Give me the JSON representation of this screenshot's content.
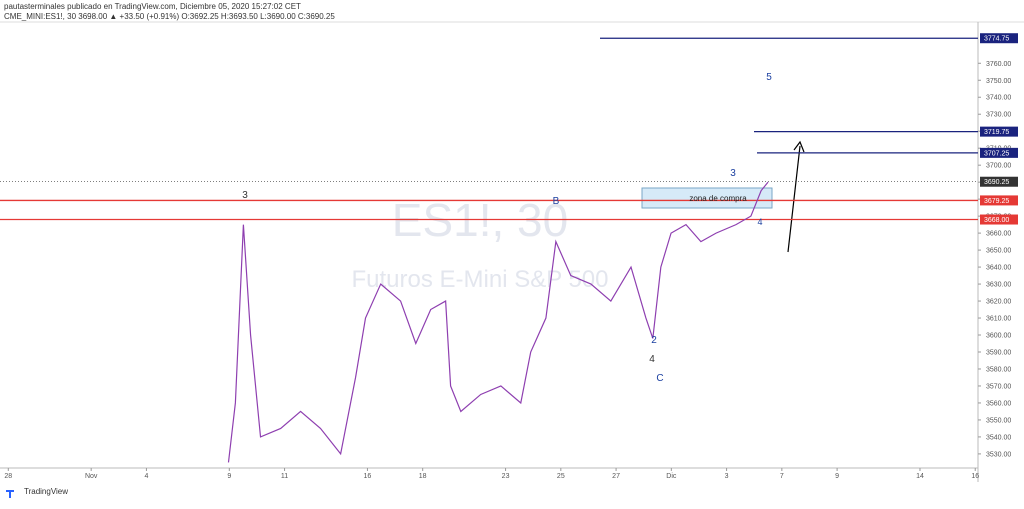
{
  "header": {
    "line1": "pautasterminales publicado en TradingView.com, Diciembre 05, 2020 15:27:02 CET",
    "line2": "CME_MINI:ES1!, 30 3698.00 ▲ +33.50 (+0.91%) O:3692.25 H:3693.50 L:3690.00 C:3690.25"
  },
  "footer": "TradingView",
  "chart_data": {
    "type": "line",
    "watermark": "ES1!, 30",
    "watermark_sub": "Futuros E-Mini S&P 500",
    "x": [
      7.97,
      8.22,
      8.51,
      8.77,
      9.13,
      9.86,
      10.58,
      11.3,
      12.03,
      12.57,
      12.93,
      13.48,
      14.2,
      14.75,
      15.29,
      15.83,
      16.01,
      16.38,
      17.1,
      17.83,
      18.55,
      18.91,
      19.46,
      19.82,
      20.36,
      21.09,
      21.81,
      22.54,
      23.08,
      23.33,
      23.62,
      23.99,
      24.53,
      25.07,
      25.62,
      26.34,
      26.88,
      27.25,
      27.5
    ],
    "series": [
      {
        "color": "#8e3fb0",
        "values": [
          3525,
          3560,
          3665,
          3600,
          3540,
          3545,
          3555,
          3545,
          3530,
          3575,
          3610,
          3630,
          3620,
          3595,
          3615,
          3620,
          3570,
          3555,
          3565,
          3570,
          3560,
          3590,
          3610,
          3655,
          3635,
          3630,
          3620,
          3640,
          3610,
          3598,
          3640,
          3660,
          3665,
          3655,
          3660,
          3665,
          3670,
          3685,
          3690
        ]
      }
    ],
    "xlim": [
      -0.3,
      35.1
    ],
    "xticks": [
      {
        "value": 0,
        "label": "28"
      },
      {
        "value": 3,
        "label": "Nov"
      },
      {
        "value": 5,
        "label": "4"
      },
      {
        "value": 8,
        "label": "9"
      },
      {
        "value": 10,
        "label": "11"
      },
      {
        "value": 13,
        "label": "16"
      },
      {
        "value": 15,
        "label": "18"
      },
      {
        "value": 18,
        "label": "23"
      },
      {
        "value": 20,
        "label": "25"
      },
      {
        "value": 22,
        "label": "27"
      },
      {
        "value": 24,
        "label": "Dic"
      },
      {
        "value": 26,
        "label": "3"
      },
      {
        "value": 28,
        "label": "7"
      },
      {
        "value": 30,
        "label": "9"
      },
      {
        "value": 33,
        "label": "14"
      },
      {
        "value": 35,
        "label": "16"
      }
    ],
    "ylim": [
      3521.7,
      3784.3
    ],
    "yticks": [
      {
        "value": 3530,
        "label": "3530.00"
      },
      {
        "value": 3540,
        "label": "3540.00"
      },
      {
        "value": 3550,
        "label": "3550.00"
      },
      {
        "value": 3560,
        "label": "3560.00"
      },
      {
        "value": 3570,
        "label": "3570.00"
      },
      {
        "value": 3580,
        "label": "3580.00"
      },
      {
        "value": 3590,
        "label": "3590.00"
      },
      {
        "value": 3600,
        "label": "3600.00"
      },
      {
        "value": 3610,
        "label": "3610.00"
      },
      {
        "value": 3620,
        "label": "3620.00"
      },
      {
        "value": 3630,
        "label": "3630.00"
      },
      {
        "value": 3640,
        "label": "3640.00"
      },
      {
        "value": 3650,
        "label": "3650.00"
      },
      {
        "value": 3660,
        "label": "3660.00"
      },
      {
        "value": 3670,
        "label": "3670.00"
      },
      {
        "value": 3680,
        "label": "3680.00"
      },
      {
        "value": 3690,
        "label": "3690.00"
      },
      {
        "value": 3700,
        "label": "3700.00"
      },
      {
        "value": 3710,
        "label": "3710.00"
      },
      {
        "value": 3720,
        "label": "3720.00"
      },
      {
        "value": 3730,
        "label": "3730.00"
      },
      {
        "value": 3740,
        "label": "3740.00"
      },
      {
        "value": 3750,
        "label": "3750.00"
      },
      {
        "value": 3760,
        "label": "3760.00"
      }
    ],
    "price_lines": [
      {
        "value": 3774.75,
        "label": "3774.75",
        "color": "#1a237e"
      },
      {
        "value": 3719.75,
        "label": "3719.75",
        "color": "#1a237e"
      },
      {
        "value": 3707.25,
        "label": "3707.25",
        "color": "#1a237e"
      },
      {
        "value": 3690.25,
        "label": "3690.25",
        "color": "#333333"
      },
      {
        "value": 3679.25,
        "label": "3679.25",
        "color": "#e53935"
      },
      {
        "value": 3668,
        "label": "3668.00",
        "color": "#e53935"
      }
    ],
    "annotations": [
      "3",
      "B",
      "3",
      "5",
      "4",
      "2",
      "4",
      "C",
      "zona de compra"
    ]
  }
}
